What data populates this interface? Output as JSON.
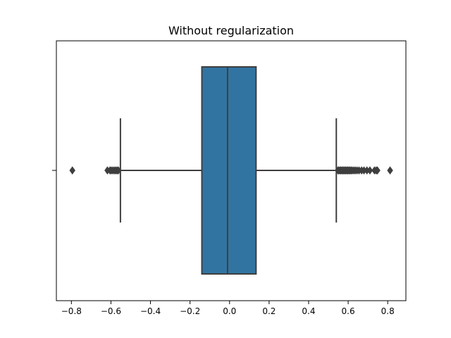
{
  "chart_data": {
    "type": "boxplot",
    "title": "Without regularization",
    "orientation": "horizontal",
    "xlim": [
      -0.876,
      0.892
    ],
    "x_ticks": [
      -0.8,
      -0.6,
      -0.4,
      -0.2,
      0.0,
      0.2,
      0.4,
      0.6,
      0.8
    ],
    "x_tick_labels": [
      "−0.8",
      "−0.6",
      "−0.4",
      "−0.2",
      "0.0",
      "0.2",
      "0.4",
      "0.6",
      "0.8"
    ],
    "y_tick_labels": [
      ""
    ],
    "grid": false,
    "box": {
      "color": "#3274a1",
      "whisker_low": -0.552,
      "q1": -0.14,
      "median": -0.01,
      "q3": 0.134,
      "whisker_high": 0.54
    },
    "outliers": [
      -0.795,
      -0.618,
      -0.605,
      -0.598,
      -0.59,
      -0.582,
      -0.575,
      -0.568,
      -0.562,
      0.548,
      0.553,
      0.558,
      0.563,
      0.568,
      0.573,
      0.578,
      0.583,
      0.588,
      0.593,
      0.598,
      0.603,
      0.608,
      0.614,
      0.62,
      0.628,
      0.636,
      0.645,
      0.655,
      0.668,
      0.68,
      0.695,
      0.71,
      0.733,
      0.742,
      0.748,
      0.812
    ]
  }
}
